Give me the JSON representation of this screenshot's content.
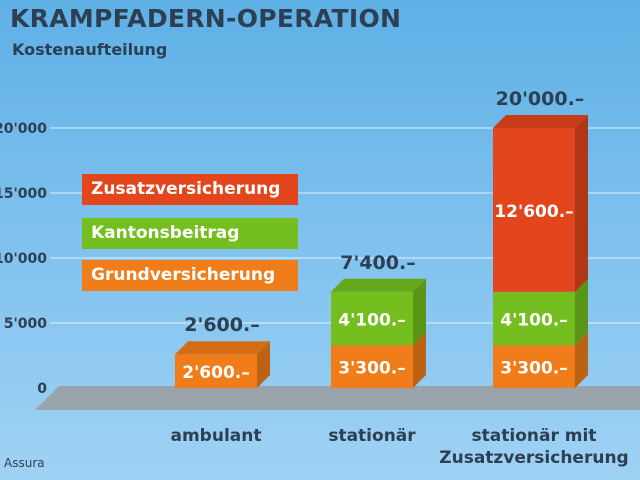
{
  "title": "KRAMPFADERN-OPERATION",
  "subtitle": "Kostenaufteilung",
  "source": "Assura",
  "colors": {
    "Grundversicherung": "#f07d1a",
    "Kantonsbeitrag": "#74bf1f",
    "Zusatzversicherung": "#e3451c"
  },
  "legend": [
    {
      "label": "Zusatzversicherung",
      "color": "#e3451c"
    },
    {
      "label": "Kantonsbeitrag",
      "color": "#74bf1f"
    },
    {
      "label": "Grundversicherung",
      "color": "#f07d1a"
    }
  ],
  "chart_data": {
    "type": "bar",
    "stacked": true,
    "title": "KRAMPFADERN-OPERATION",
    "subtitle": "Kostenaufteilung",
    "categories": [
      "ambulant",
      "stationär",
      "stationär mit Zusatzversicherung"
    ],
    "category_lines": [
      [
        "ambulant"
      ],
      [
        "stationär"
      ],
      [
        "stationär mit",
        "Zusatzversicherung"
      ]
    ],
    "series": [
      {
        "name": "Grundversicherung",
        "values": [
          2600,
          3300,
          3300
        ],
        "labels": [
          "2'600.–",
          "3'300.–",
          "3'300.–"
        ]
      },
      {
        "name": "Kantonsbeitrag",
        "values": [
          0,
          4100,
          4100
        ],
        "labels": [
          "",
          "4'100.–",
          "4'100.–"
        ]
      },
      {
        "name": "Zusatzversicherung",
        "values": [
          0,
          0,
          12600
        ],
        "labels": [
          "",
          "",
          "12'600.–"
        ]
      }
    ],
    "totals": [
      "2'600.–",
      "7'400.–",
      "20'000.–"
    ],
    "yticks": [
      0,
      5000,
      10000,
      15000,
      20000
    ],
    "ytick_labels": [
      "0",
      "5'000",
      "10'000",
      "15'000",
      "20'000"
    ],
    "ylim": [
      0,
      20000
    ],
    "grid": true,
    "legend_position": "left"
  }
}
